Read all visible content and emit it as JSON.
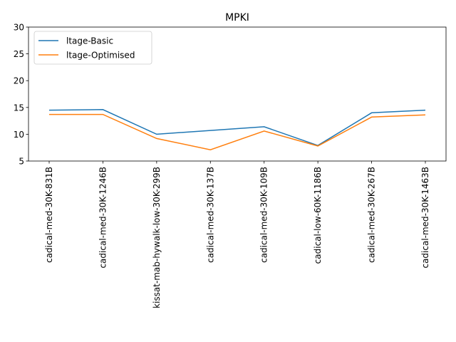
{
  "chart_data": {
    "type": "line",
    "title": "MPKI",
    "xlabel": "",
    "ylabel": "",
    "categories": [
      "cadical-med-30K-831B",
      "cadical-med-30K-1246B",
      "kissat-mab-hywalk-low-30K-299B",
      "cadical-med-30K-137B",
      "cadical-med-30K-109B",
      "cadical-low-60K-1186B",
      "cadical-med-30K-267B",
      "cadical-med-30K-1463B"
    ],
    "series": [
      {
        "name": "ltage-Basic",
        "color": "#1f77b4",
        "values": [
          14.5,
          14.6,
          10.0,
          10.7,
          11.4,
          7.9,
          14.0,
          14.5
        ]
      },
      {
        "name": "ltage-Optimised",
        "color": "#ff7f0e",
        "values": [
          13.7,
          13.7,
          9.2,
          7.1,
          10.6,
          7.8,
          13.2,
          13.6
        ]
      }
    ],
    "ylim": [
      5,
      30
    ],
    "yticks": [
      5,
      10,
      15,
      20,
      25,
      30
    ],
    "grid": false,
    "legend": "top-left"
  }
}
